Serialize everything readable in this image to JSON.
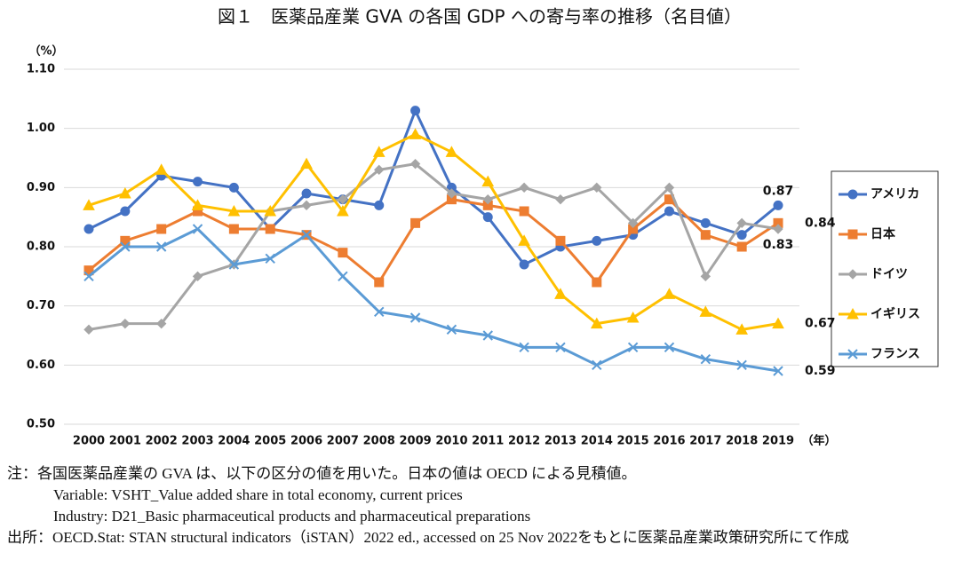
{
  "chart_data": {
    "type": "line",
    "title": "図１　医薬品産業 GVA の各国 GDP への寄与率の推移（名目値）",
    "y_unit": "（%）",
    "x_unit": "（年）",
    "categories": [
      "2000",
      "2001",
      "2002",
      "2003",
      "2004",
      "2005",
      "2006",
      "2007",
      "2008",
      "2009",
      "2010",
      "2011",
      "2012",
      "2013",
      "2014",
      "2015",
      "2016",
      "2017",
      "2018",
      "2019"
    ],
    "ylim": [
      0.5,
      1.1
    ],
    "yticks": [
      {
        "value": 0.5,
        "label": "0.50"
      },
      {
        "value": 0.6,
        "label": "0.60"
      },
      {
        "value": 0.7,
        "label": "0.70"
      },
      {
        "value": 0.8,
        "label": "0.80"
      },
      {
        "value": 0.9,
        "label": "0.90"
      },
      {
        "value": 1.0,
        "label": "1.00"
      },
      {
        "value": 1.1,
        "label": "1.10"
      }
    ],
    "grid": true,
    "legend": "right",
    "series": [
      {
        "name": "アメリカ",
        "color": "#4472c4",
        "marker": "circle",
        "values": [
          0.83,
          0.86,
          0.92,
          0.91,
          0.9,
          0.83,
          0.89,
          0.88,
          0.87,
          1.03,
          0.9,
          0.85,
          0.77,
          0.8,
          0.81,
          0.82,
          0.86,
          0.84,
          0.82,
          0.87
        ]
      },
      {
        "name": "日本",
        "color": "#ed7d31",
        "marker": "square",
        "values": [
          0.76,
          0.81,
          0.83,
          0.86,
          0.83,
          0.83,
          0.82,
          0.79,
          0.74,
          0.84,
          0.88,
          0.87,
          0.86,
          0.81,
          0.74,
          0.83,
          0.88,
          0.82,
          0.8,
          0.84
        ]
      },
      {
        "name": "ドイツ",
        "color": "#a5a5a5",
        "marker": "diamond",
        "values": [
          0.66,
          0.67,
          0.67,
          0.75,
          0.77,
          0.86,
          0.87,
          0.88,
          0.93,
          0.94,
          0.89,
          0.88,
          0.9,
          0.88,
          0.9,
          0.84,
          0.9,
          0.75,
          0.84,
          0.83
        ]
      },
      {
        "name": "イギリス",
        "color": "#ffc000",
        "marker": "triangle",
        "values": [
          0.87,
          0.89,
          0.93,
          0.87,
          0.86,
          0.86,
          0.94,
          0.86,
          0.96,
          0.99,
          0.96,
          0.91,
          0.81,
          0.72,
          0.67,
          0.68,
          0.72,
          0.69,
          0.66,
          0.67
        ]
      },
      {
        "name": "フランス",
        "color": "#5b9bd5",
        "marker": "x",
        "values": [
          0.75,
          0.8,
          0.8,
          0.83,
          0.77,
          0.78,
          0.82,
          0.75,
          0.69,
          0.68,
          0.66,
          0.65,
          0.63,
          0.63,
          0.6,
          0.63,
          0.63,
          0.61,
          0.6,
          0.59
        ]
      }
    ]
  },
  "notes": {
    "note": "注：各国医薬品産業の GVA は、以下の区分の値を用いた。日本の値は OECD による見積値。",
    "variable": "Variable: VSHT_Value added share in total economy, current prices",
    "industry": "Industry: D21_Basic pharmaceutical products and pharmaceutical preparations",
    "source": "出所：OECD.Stat: STAN structural indicators（iSTAN）2022 ed., accessed on 25 Nov 2022をもとに医薬品産業政策研究所にて作成"
  }
}
